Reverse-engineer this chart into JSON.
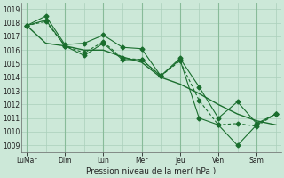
{
  "background_color": "#cce8d8",
  "grid_color": "#aacfbb",
  "line_color": "#1a6e2e",
  "x_major_labels": [
    "LuMar",
    "Dim",
    "Lun",
    "Mer",
    "Jeu",
    "Ven",
    "Sam"
  ],
  "x_major_positions": [
    0,
    2,
    4,
    6,
    8,
    10,
    12
  ],
  "ylim": [
    1008.5,
    1019.5
  ],
  "yticks": [
    1009,
    1010,
    1011,
    1012,
    1013,
    1014,
    1015,
    1016,
    1017,
    1018,
    1019
  ],
  "xlabel": "Pression niveau de la mer( hPa )",
  "series": [
    [
      1017.8,
      1018.5,
      1016.4,
      1016.5,
      1017.1,
      1016.2,
      1016.1,
      1014.1,
      1015.4,
      1013.3,
      1011.0,
      1012.2,
      1010.6,
      1011.3
    ],
    [
      1017.8,
      1018.2,
      1016.3,
      1015.6,
      1016.5,
      1015.3,
      1015.3,
      1014.1,
      1015.3,
      1011.0,
      1010.5,
      1009.0,
      1010.5,
      1011.3
    ],
    [
      1017.8,
      1018.1,
      1016.3,
      1015.8,
      1016.6,
      1015.4,
      1015.3,
      1014.1,
      1015.2,
      1012.3,
      1010.5,
      1010.6,
      1010.4,
      1011.3
    ],
    [
      1017.8,
      1016.5,
      1016.3,
      1016.0,
      1016.0,
      1015.5,
      1015.1,
      1014.0,
      1013.5,
      1012.8,
      1012.0,
      1011.3,
      1010.8,
      1010.5
    ]
  ],
  "line_styles": [
    "-",
    "-",
    "-",
    "-"
  ],
  "markers": [
    "D",
    "D",
    "D",
    null
  ],
  "marker_sizes": [
    2.5,
    2.5,
    2.5,
    0
  ],
  "linewidths": [
    0.8,
    0.8,
    0.8,
    1.0
  ],
  "series_dashes": [
    [],
    [],
    [
      3,
      2
    ],
    []
  ],
  "figsize": [
    3.2,
    2.0
  ],
  "dpi": 100
}
